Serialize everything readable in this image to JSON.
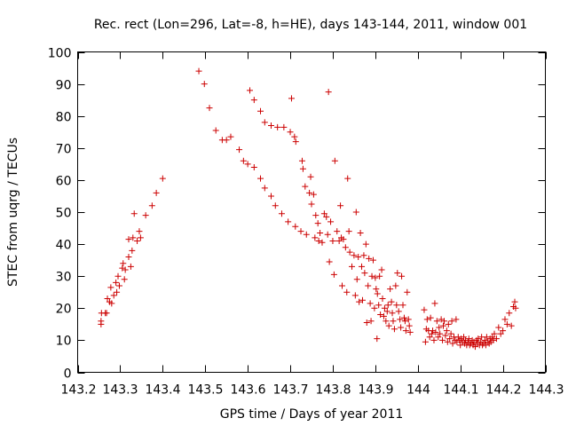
{
  "chart_data": {
    "type": "scatter",
    "title": "Rec. rect (Lon=296, Lat=-8, h=HE), days 143-144, 2011, window 001",
    "xlabel": "GPS time / Days of year 2011",
    "ylabel": "STEC from uqrg / TECUs",
    "xlim": [
      143.2,
      144.3
    ],
    "ylim": [
      0,
      100
    ],
    "xticks": [
      143.2,
      143.3,
      143.4,
      143.5,
      143.6,
      143.7,
      143.8,
      143.9,
      144.0,
      144.1,
      144.2,
      144.3
    ],
    "xtick_labels": [
      "143.2",
      "143.3",
      "143.4",
      "143.5",
      "143.6",
      "143.7",
      "143.8",
      "143.9",
      "144",
      "144.1",
      "144.2",
      "144.3"
    ],
    "yticks": [
      0,
      10,
      20,
      30,
      40,
      50,
      60,
      70,
      80,
      90,
      100
    ],
    "ytick_labels": [
      "0",
      "10",
      "20",
      "30",
      "40",
      "50",
      "60",
      "70",
      "80",
      "90",
      "100"
    ],
    "grid": false,
    "marker": "plus",
    "color": "#cc0000",
    "series": [
      {
        "points": [
          [
            143.255,
            15
          ],
          [
            143.255,
            16
          ],
          [
            143.256,
            18.5
          ],
          [
            143.265,
            18.5
          ],
          [
            143.268,
            18.5
          ],
          [
            143.27,
            23
          ],
          [
            143.275,
            22
          ],
          [
            143.278,
            26.5
          ],
          [
            143.28,
            21.5
          ],
          [
            143.285,
            24
          ],
          [
            143.29,
            28
          ],
          [
            143.292,
            25
          ],
          [
            143.295,
            30
          ],
          [
            143.298,
            27
          ],
          [
            143.305,
            32.5
          ],
          [
            143.307,
            34
          ],
          [
            143.31,
            29
          ],
          [
            143.312,
            32
          ],
          [
            143.32,
            36
          ],
          [
            143.32,
            41.5
          ],
          [
            143.325,
            33
          ],
          [
            143.328,
            38
          ],
          [
            143.33,
            42
          ],
          [
            143.333,
            49.5
          ],
          [
            143.34,
            41
          ],
          [
            143.345,
            44
          ],
          [
            143.348,
            42
          ],
          [
            143.36,
            49
          ],
          [
            143.375,
            52
          ],
          [
            143.385,
            56
          ],
          [
            143.4,
            60.5
          ],
          [
            143.485,
            94
          ],
          [
            143.498,
            90
          ],
          [
            143.51,
            82.5
          ],
          [
            143.525,
            75.5
          ],
          [
            143.54,
            72.5
          ],
          [
            143.55,
            72.5
          ],
          [
            143.56,
            73.5
          ],
          [
            143.58,
            69.5
          ],
          [
            143.59,
            66
          ],
          [
            143.6,
            65
          ],
          [
            143.605,
            88
          ],
          [
            143.615,
            85
          ],
          [
            143.615,
            64
          ],
          [
            143.63,
            81.5
          ],
          [
            143.63,
            60.5
          ],
          [
            143.64,
            78
          ],
          [
            143.64,
            57.5
          ],
          [
            143.655,
            77
          ],
          [
            143.655,
            55
          ],
          [
            143.665,
            52
          ],
          [
            143.67,
            76.5
          ],
          [
            143.68,
            49.5
          ],
          [
            143.685,
            76.5
          ],
          [
            143.695,
            47
          ],
          [
            143.7,
            75
          ],
          [
            143.703,
            85.5
          ],
          [
            143.71,
            73.5
          ],
          [
            143.712,
            45.5
          ],
          [
            143.713,
            72
          ],
          [
            143.725,
            44
          ],
          [
            143.728,
            66
          ],
          [
            143.73,
            63.5
          ],
          [
            143.735,
            58
          ],
          [
            143.738,
            43
          ],
          [
            143.745,
            56
          ],
          [
            143.748,
            61
          ],
          [
            143.75,
            52.5
          ],
          [
            143.755,
            55.5
          ],
          [
            143.758,
            42
          ],
          [
            143.76,
            49
          ],
          [
            143.765,
            46.5
          ],
          [
            143.767,
            41
          ],
          [
            143.77,
            43.5
          ],
          [
            143.775,
            40.5
          ],
          [
            143.78,
            49.5
          ],
          [
            143.785,
            48.5
          ],
          [
            143.788,
            43
          ],
          [
            143.79,
            87.5
          ],
          [
            143.792,
            34.5
          ],
          [
            143.795,
            47
          ],
          [
            143.8,
            41
          ],
          [
            143.803,
            30.5
          ],
          [
            143.805,
            66
          ],
          [
            143.81,
            44
          ],
          [
            143.815,
            41
          ],
          [
            143.818,
            52
          ],
          [
            143.82,
            42
          ],
          [
            143.822,
            27
          ],
          [
            143.825,
            41.5
          ],
          [
            143.83,
            39
          ],
          [
            143.833,
            25
          ],
          [
            143.835,
            60.5
          ],
          [
            143.838,
            44
          ],
          [
            143.84,
            37.5
          ],
          [
            143.845,
            33
          ],
          [
            143.85,
            36.5
          ],
          [
            143.853,
            24
          ],
          [
            143.855,
            50
          ],
          [
            143.857,
            29
          ],
          [
            143.86,
            36
          ],
          [
            143.862,
            22
          ],
          [
            143.865,
            43.5
          ],
          [
            143.868,
            33
          ],
          [
            143.87,
            22.5
          ],
          [
            143.873,
            36.5
          ],
          [
            143.875,
            31
          ],
          [
            143.878,
            40
          ],
          [
            143.88,
            15.5
          ],
          [
            143.883,
            27
          ],
          [
            143.885,
            35.5
          ],
          [
            143.888,
            21.5
          ],
          [
            143.89,
            16
          ],
          [
            143.892,
            30
          ],
          [
            143.895,
            35
          ],
          [
            143.898,
            20
          ],
          [
            143.9,
            29.5
          ],
          [
            143.902,
            26
          ],
          [
            143.904,
            10.5
          ],
          [
            143.905,
            24.5
          ],
          [
            143.908,
            21
          ],
          [
            143.91,
            30
          ],
          [
            143.912,
            18
          ],
          [
            143.915,
            32
          ],
          [
            143.917,
            23
          ],
          [
            143.92,
            17.5
          ],
          [
            143.922,
            20
          ],
          [
            143.925,
            16
          ],
          [
            143.928,
            19
          ],
          [
            143.93,
            21
          ],
          [
            143.932,
            14.5
          ],
          [
            143.935,
            26
          ],
          [
            143.938,
            22
          ],
          [
            143.94,
            18.5
          ],
          [
            143.942,
            16
          ],
          [
            143.945,
            13.5
          ],
          [
            143.948,
            27
          ],
          [
            143.95,
            21
          ],
          [
            143.952,
            31
          ],
          [
            143.955,
            19
          ],
          [
            143.958,
            16.5
          ],
          [
            143.96,
            14
          ],
          [
            143.962,
            30
          ],
          [
            143.965,
            21
          ],
          [
            143.968,
            17
          ],
          [
            143.97,
            16
          ],
          [
            143.972,
            13
          ],
          [
            143.975,
            25
          ],
          [
            143.978,
            16.5
          ],
          [
            143.98,
            14.5
          ],
          [
            143.982,
            12.5
          ],
          [
            144.015,
            19.5
          ],
          [
            144.018,
            9.5
          ],
          [
            144.02,
            13.5
          ],
          [
            144.022,
            16.5
          ],
          [
            144.025,
            13
          ],
          [
            144.028,
            11
          ],
          [
            144.03,
            17
          ],
          [
            144.033,
            12
          ],
          [
            144.035,
            13
          ],
          [
            144.038,
            10
          ],
          [
            144.04,
            21.5
          ],
          [
            144.042,
            12.5
          ],
          [
            144.045,
            16
          ],
          [
            144.048,
            11
          ],
          [
            144.05,
            14
          ],
          [
            144.052,
            12
          ],
          [
            144.055,
            16.5
          ],
          [
            144.058,
            10
          ],
          [
            144.06,
            14.5
          ],
          [
            144.062,
            16
          ],
          [
            144.065,
            11.5
          ],
          [
            144.068,
            13
          ],
          [
            144.07,
            9.5
          ],
          [
            144.072,
            15
          ],
          [
            144.075,
            10.5
          ],
          [
            144.078,
            12
          ],
          [
            144.08,
            16
          ],
          [
            144.082,
            9
          ],
          [
            144.085,
            11
          ],
          [
            144.088,
            10
          ],
          [
            144.09,
            16.5
          ],
          [
            144.092,
            9.5
          ],
          [
            144.095,
            11
          ],
          [
            144.098,
            10
          ],
          [
            144.1,
            8.5
          ],
          [
            144.102,
            10.5
          ],
          [
            144.105,
            9.5
          ],
          [
            144.108,
            11
          ],
          [
            144.11,
            9
          ],
          [
            144.112,
            10
          ],
          [
            144.115,
            8.5
          ],
          [
            144.118,
            9.5
          ],
          [
            144.12,
            10.5
          ],
          [
            144.122,
            8.5
          ],
          [
            144.125,
            9
          ],
          [
            144.128,
            10
          ],
          [
            144.13,
            8.5
          ],
          [
            144.132,
            9.5
          ],
          [
            144.135,
            8
          ],
          [
            144.138,
            10
          ],
          [
            144.14,
            9
          ],
          [
            144.142,
            10.5
          ],
          [
            144.145,
            8.5
          ],
          [
            144.148,
            9.5
          ],
          [
            144.15,
            11
          ],
          [
            144.152,
            8.5
          ],
          [
            144.155,
            9
          ],
          [
            144.158,
            10
          ],
          [
            144.16,
            8.5
          ],
          [
            144.162,
            11
          ],
          [
            144.165,
            9.5
          ],
          [
            144.168,
            9
          ],
          [
            144.17,
            10.5
          ],
          [
            144.172,
            9.5
          ],
          [
            144.175,
            11
          ],
          [
            144.178,
            10
          ],
          [
            144.18,
            12
          ],
          [
            144.185,
            10.5
          ],
          [
            144.19,
            14
          ],
          [
            144.195,
            12
          ],
          [
            144.2,
            13
          ],
          [
            144.205,
            16.5
          ],
          [
            144.21,
            15
          ],
          [
            144.215,
            18.5
          ],
          [
            144.22,
            14.5
          ],
          [
            144.225,
            20.5
          ],
          [
            144.228,
            22
          ],
          [
            144.23,
            20
          ]
        ]
      }
    ]
  }
}
